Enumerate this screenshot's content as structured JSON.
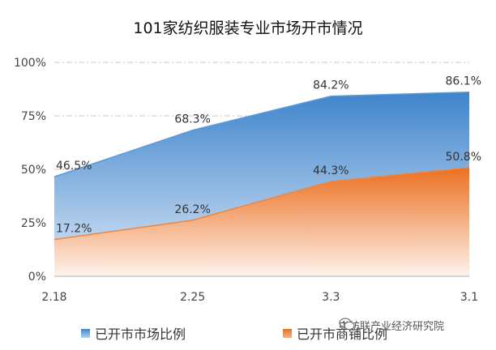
{
  "chart_data": {
    "type": "area",
    "title": "101家纺织服装专业市场开市情况",
    "categories": [
      "2.18",
      "2.25",
      "3.3",
      "3.1"
    ],
    "series": [
      {
        "name": "已开市市场比例",
        "values": [
          46.5,
          68.3,
          84.2,
          86.1
        ],
        "labels": [
          "46.5%",
          "68.3%",
          "84.2%",
          "86.1%"
        ],
        "color": "#4f8fd0"
      },
      {
        "name": "已开市商铺比例",
        "values": [
          17.2,
          26.2,
          44.3,
          50.8
        ],
        "labels": [
          "17.2%",
          "26.2%",
          "44.3%",
          "50.8%"
        ],
        "color": "#ec7a2f"
      }
    ],
    "yticks": [
      "0%",
      "25%",
      "50%",
      "75%",
      "100%"
    ],
    "ylim": [
      0,
      100
    ],
    "grid": true,
    "legend_position": "bottom"
  },
  "watermark": {
    "text": "中纺联产业经济研究院",
    "icon": "wechat-icon"
  }
}
